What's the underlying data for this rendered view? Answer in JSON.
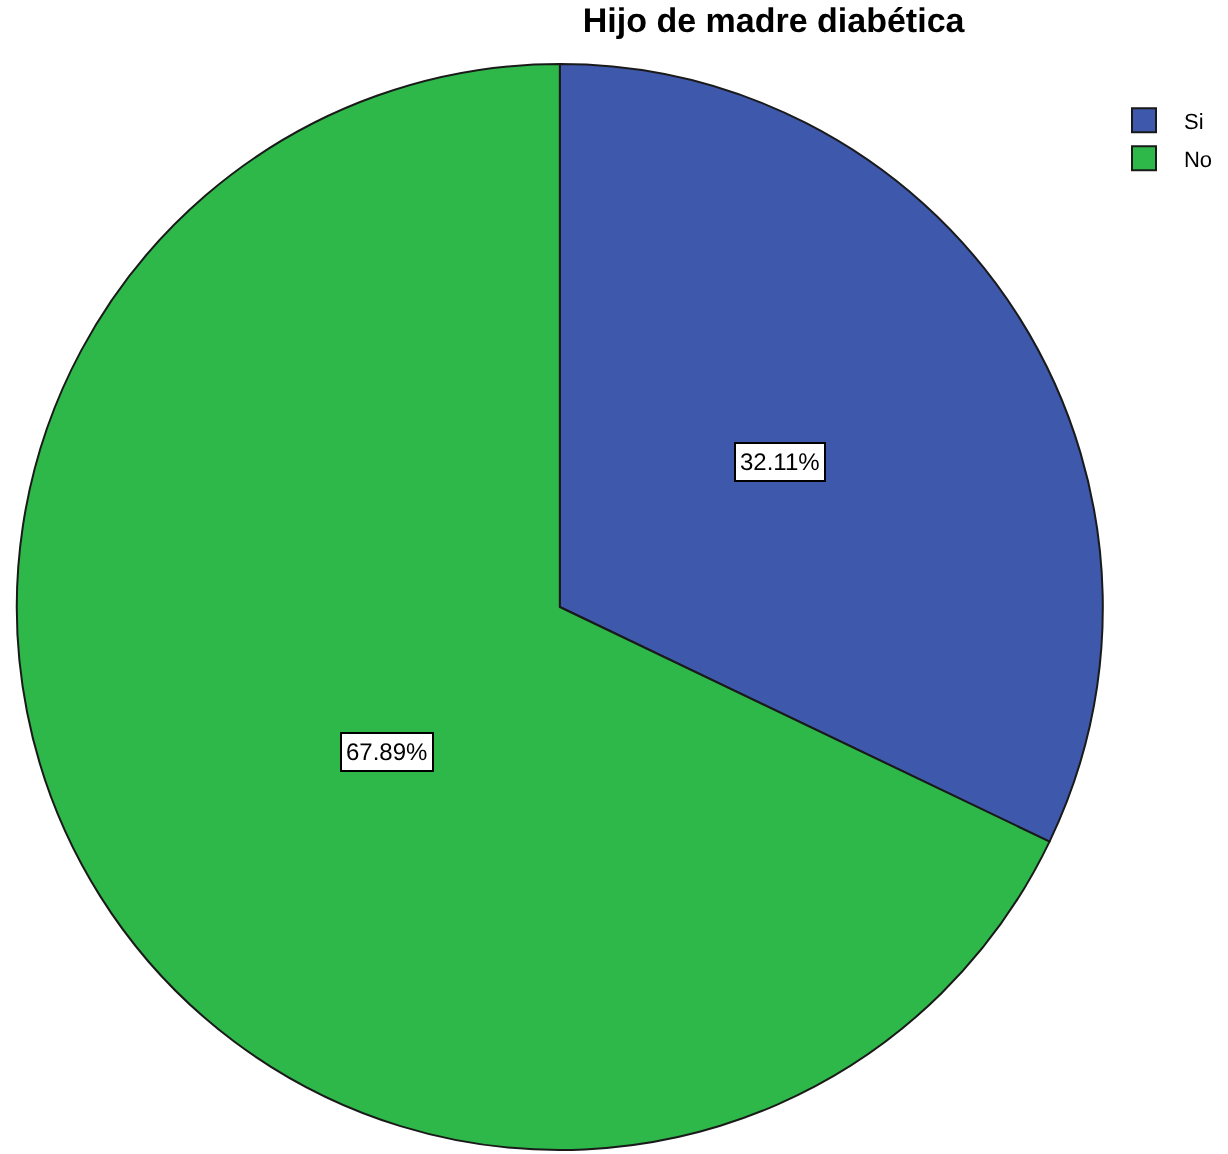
{
  "chart_data": {
    "type": "pie",
    "title": "Hijo de madre diabética",
    "categories": [
      "Si",
      "No"
    ],
    "values": [
      32.11,
      67.89
    ],
    "colors": [
      "#3e58ab",
      "#2eb84a"
    ],
    "value_labels": [
      "32.11%",
      "67.89%"
    ],
    "legend": "top right"
  }
}
